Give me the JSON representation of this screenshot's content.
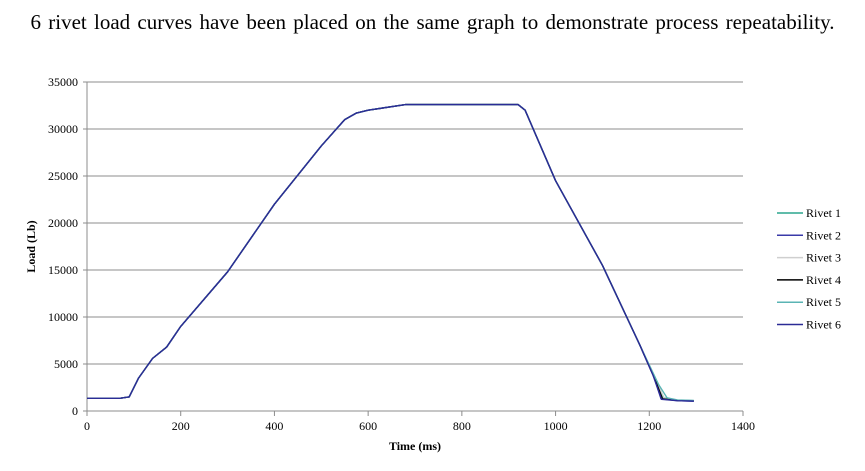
{
  "page": {
    "heading": "6 rivet load curves have been placed on the same graph to demonstrate process repeatability."
  },
  "chart_data": {
    "type": "line",
    "title": "",
    "xlabel": "Time (ms)",
    "ylabel": "Load (Lb)",
    "xlim": [
      0,
      1400
    ],
    "ylim": [
      0,
      35000
    ],
    "x_ticks": [
      0,
      200,
      400,
      600,
      800,
      1000,
      1200,
      1400
    ],
    "y_ticks": [
      0,
      5000,
      10000,
      15000,
      20000,
      25000,
      30000,
      35000
    ],
    "grid": "horizontal",
    "legend_position": "right",
    "series": [
      {
        "name": "Rivet 1",
        "color": "#2ca58d",
        "points": [
          [
            0,
            1350
          ],
          [
            70,
            1350
          ],
          [
            90,
            1500
          ],
          [
            110,
            3500
          ],
          [
            140,
            5600
          ],
          [
            170,
            6800
          ],
          [
            200,
            9000
          ],
          [
            300,
            14800
          ],
          [
            400,
            22000
          ],
          [
            500,
            28200
          ],
          [
            550,
            31000
          ],
          [
            575,
            31700
          ],
          [
            600,
            32000
          ],
          [
            680,
            32600
          ],
          [
            800,
            32600
          ],
          [
            920,
            32600
          ],
          [
            935,
            32000
          ],
          [
            1000,
            24500
          ],
          [
            1100,
            15500
          ],
          [
            1180,
            7000
          ],
          [
            1205,
            4200
          ],
          [
            1230,
            1400
          ],
          [
            1260,
            1150
          ],
          [
            1295,
            1100
          ]
        ]
      },
      {
        "name": "Rivet 2",
        "color": "#3a3aa8",
        "points": [
          [
            0,
            1350
          ],
          [
            70,
            1350
          ],
          [
            90,
            1500
          ],
          [
            110,
            3500
          ],
          [
            140,
            5600
          ],
          [
            170,
            6800
          ],
          [
            200,
            9000
          ],
          [
            300,
            14800
          ],
          [
            400,
            22000
          ],
          [
            500,
            28200
          ],
          [
            550,
            31000
          ],
          [
            575,
            31700
          ],
          [
            600,
            32000
          ],
          [
            680,
            32600
          ],
          [
            800,
            32600
          ],
          [
            920,
            32600
          ],
          [
            935,
            32000
          ],
          [
            1000,
            24500
          ],
          [
            1100,
            15500
          ],
          [
            1180,
            7000
          ],
          [
            1210,
            3600
          ],
          [
            1225,
            1300
          ],
          [
            1260,
            1100
          ],
          [
            1295,
            1050
          ]
        ]
      },
      {
        "name": "Rivet 3",
        "color": "#cfcfcf",
        "points": [
          [
            0,
            1350
          ],
          [
            70,
            1350
          ],
          [
            90,
            1500
          ],
          [
            110,
            3500
          ],
          [
            140,
            5600
          ],
          [
            170,
            6800
          ],
          [
            200,
            9000
          ],
          [
            300,
            14800
          ],
          [
            400,
            22000
          ],
          [
            500,
            28200
          ],
          [
            550,
            31000
          ],
          [
            575,
            31700
          ],
          [
            600,
            32000
          ],
          [
            680,
            32600
          ],
          [
            800,
            32600
          ],
          [
            920,
            32600
          ],
          [
            935,
            32000
          ],
          [
            1000,
            24500
          ],
          [
            1100,
            15500
          ],
          [
            1180,
            7000
          ],
          [
            1215,
            3200
          ],
          [
            1232,
            1350
          ],
          [
            1260,
            1150
          ],
          [
            1295,
            1100
          ]
        ]
      },
      {
        "name": "Rivet 4",
        "color": "#000000",
        "points": [
          [
            0,
            1350
          ],
          [
            70,
            1350
          ],
          [
            90,
            1500
          ],
          [
            110,
            3500
          ],
          [
            140,
            5600
          ],
          [
            170,
            6800
          ],
          [
            200,
            9000
          ],
          [
            300,
            14800
          ],
          [
            400,
            22000
          ],
          [
            500,
            28200
          ],
          [
            550,
            31000
          ],
          [
            575,
            31700
          ],
          [
            600,
            32000
          ],
          [
            680,
            32600
          ],
          [
            800,
            32600
          ],
          [
            920,
            32600
          ],
          [
            935,
            32000
          ],
          [
            1000,
            24500
          ],
          [
            1100,
            15500
          ],
          [
            1180,
            7000
          ],
          [
            1212,
            3400
          ],
          [
            1228,
            1300
          ],
          [
            1260,
            1120
          ],
          [
            1295,
            1080
          ]
        ]
      },
      {
        "name": "Rivet 5",
        "color": "#5ab4b4",
        "points": [
          [
            0,
            1350
          ],
          [
            70,
            1350
          ],
          [
            90,
            1500
          ],
          [
            110,
            3500
          ],
          [
            140,
            5600
          ],
          [
            170,
            6800
          ],
          [
            200,
            9000
          ],
          [
            300,
            14800
          ],
          [
            400,
            22000
          ],
          [
            500,
            28200
          ],
          [
            550,
            31000
          ],
          [
            575,
            31700
          ],
          [
            600,
            32000
          ],
          [
            680,
            32600
          ],
          [
            800,
            32600
          ],
          [
            920,
            32600
          ],
          [
            935,
            32000
          ],
          [
            1000,
            24500
          ],
          [
            1100,
            15500
          ],
          [
            1180,
            7000
          ],
          [
            1220,
            2800
          ],
          [
            1238,
            1400
          ],
          [
            1260,
            1180
          ],
          [
            1295,
            1120
          ]
        ]
      },
      {
        "name": "Rivet 6",
        "color": "#2b2b96",
        "points": [
          [
            0,
            1350
          ],
          [
            70,
            1350
          ],
          [
            90,
            1500
          ],
          [
            110,
            3500
          ],
          [
            140,
            5600
          ],
          [
            170,
            6800
          ],
          [
            200,
            9000
          ],
          [
            300,
            14800
          ],
          [
            400,
            22000
          ],
          [
            500,
            28200
          ],
          [
            550,
            31000
          ],
          [
            575,
            31700
          ],
          [
            600,
            32000
          ],
          [
            680,
            32600
          ],
          [
            800,
            32600
          ],
          [
            920,
            32600
          ],
          [
            935,
            32000
          ],
          [
            1000,
            24500
          ],
          [
            1100,
            15500
          ],
          [
            1180,
            7000
          ],
          [
            1208,
            3800
          ],
          [
            1226,
            1250
          ],
          [
            1260,
            1100
          ],
          [
            1295,
            1050
          ]
        ]
      }
    ]
  }
}
